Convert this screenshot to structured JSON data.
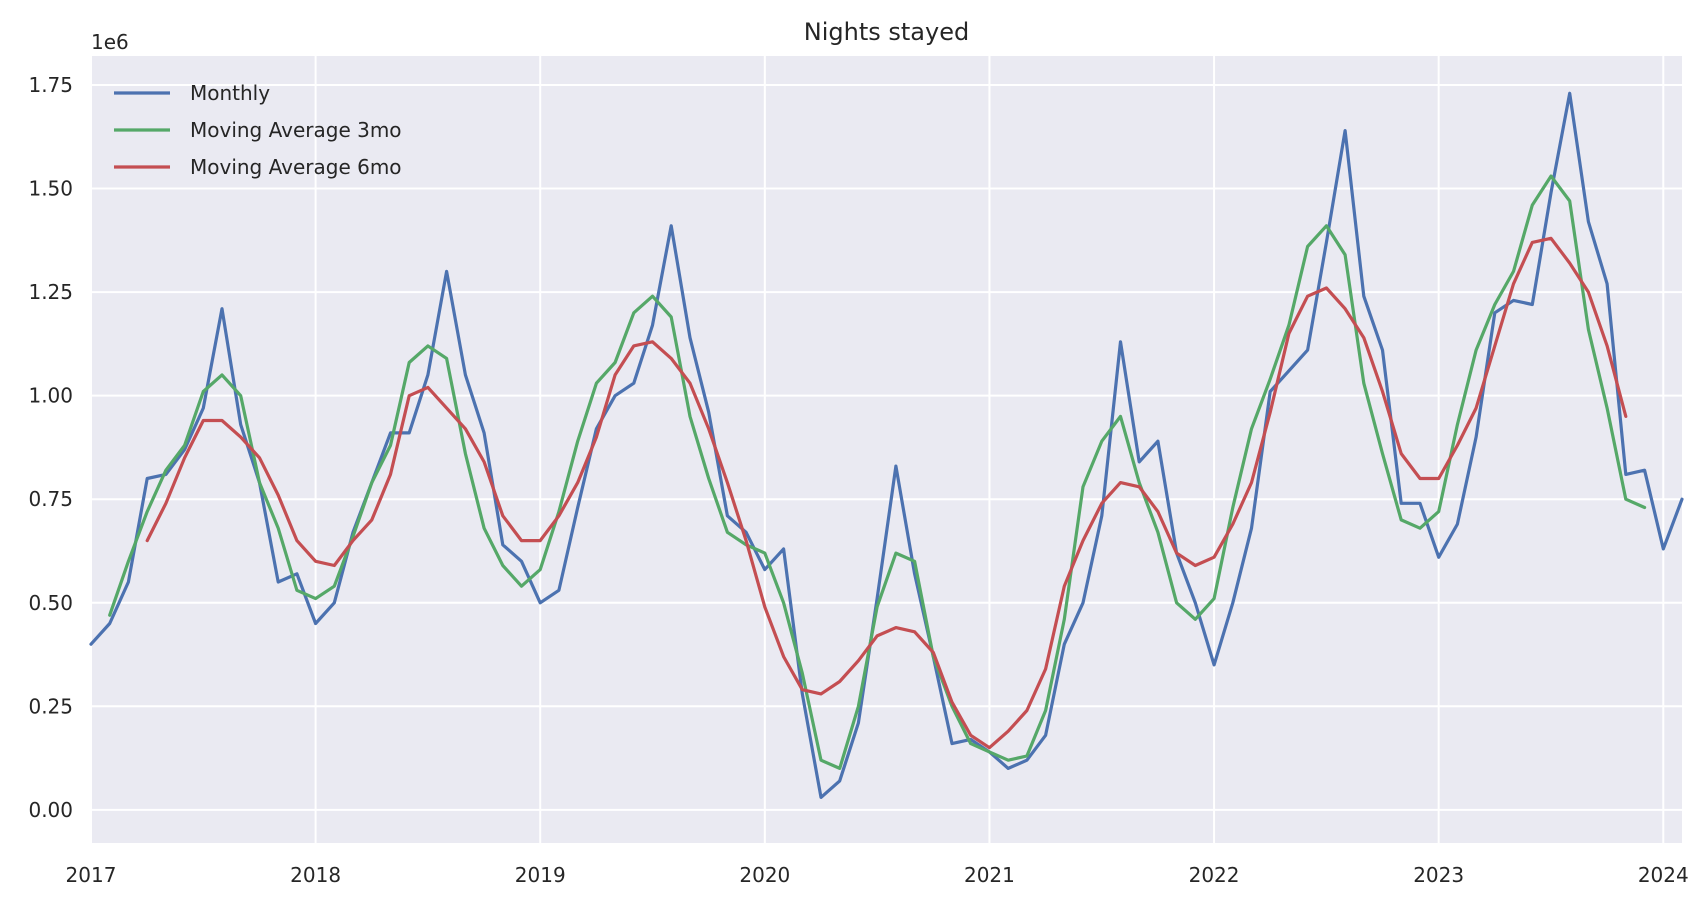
{
  "chart_data": {
    "type": "line",
    "title": "Nights stayed",
    "xlabel": "",
    "ylabel": "",
    "y_offset_label": "1e6",
    "xlim": [
      "2017-01",
      "2024-02"
    ],
    "ylim": [
      -0.08,
      1.82
    ],
    "x_ticks": [
      "2017",
      "2018",
      "2019",
      "2020",
      "2021",
      "2022",
      "2023",
      "2024"
    ],
    "y_ticks": [
      "0.00",
      "0.25",
      "0.50",
      "0.75",
      "1.00",
      "1.25",
      "1.50",
      "1.75"
    ],
    "grid": true,
    "legend_position": "top-left",
    "x": [
      "2017-01",
      "2017-02",
      "2017-03",
      "2017-04",
      "2017-05",
      "2017-06",
      "2017-07",
      "2017-08",
      "2017-09",
      "2017-10",
      "2017-11",
      "2017-12",
      "2018-01",
      "2018-02",
      "2018-03",
      "2018-04",
      "2018-05",
      "2018-06",
      "2018-07",
      "2018-08",
      "2018-09",
      "2018-10",
      "2018-11",
      "2018-12",
      "2019-01",
      "2019-02",
      "2019-03",
      "2019-04",
      "2019-05",
      "2019-06",
      "2019-07",
      "2019-08",
      "2019-09",
      "2019-10",
      "2019-11",
      "2019-12",
      "2020-01",
      "2020-02",
      "2020-03",
      "2020-04",
      "2020-05",
      "2020-06",
      "2020-07",
      "2020-08",
      "2020-09",
      "2020-10",
      "2020-11",
      "2020-12",
      "2021-01",
      "2021-02",
      "2021-03",
      "2021-04",
      "2021-05",
      "2021-06",
      "2021-07",
      "2021-08",
      "2021-09",
      "2021-10",
      "2021-11",
      "2021-12",
      "2022-01",
      "2022-02",
      "2022-03",
      "2022-04",
      "2022-05",
      "2022-06",
      "2022-07",
      "2022-08",
      "2022-09",
      "2022-10",
      "2022-11",
      "2022-12",
      "2023-01",
      "2023-02",
      "2023-03",
      "2023-04",
      "2023-05",
      "2023-06",
      "2023-07",
      "2023-08",
      "2023-09",
      "2023-10",
      "2023-11",
      "2023-12",
      "2024-01",
      "2024-02"
    ],
    "series": [
      {
        "name": "Monthly",
        "color": "#4c72b0",
        "values": [
          0.4,
          0.45,
          0.55,
          0.8,
          0.81,
          0.87,
          0.97,
          1.21,
          0.93,
          0.79,
          0.55,
          0.57,
          0.45,
          0.5,
          0.67,
          0.79,
          0.91,
          0.91,
          1.05,
          1.3,
          1.05,
          0.91,
          0.64,
          0.6,
          0.5,
          0.53,
          0.73,
          0.92,
          1.0,
          1.03,
          1.17,
          1.41,
          1.14,
          0.96,
          0.71,
          0.67,
          0.58,
          0.63,
          0.28,
          0.03,
          0.07,
          0.21,
          0.51,
          0.83,
          0.57,
          0.37,
          0.16,
          0.17,
          0.14,
          0.1,
          0.12,
          0.18,
          0.4,
          0.5,
          0.71,
          1.13,
          0.84,
          0.89,
          0.62,
          0.5,
          0.35,
          0.5,
          0.68,
          1.01,
          1.06,
          1.11,
          1.37,
          1.64,
          1.24,
          1.11,
          0.74,
          0.74,
          0.61,
          0.69,
          0.9,
          1.2,
          1.23,
          1.22,
          1.49,
          1.73,
          1.42,
          1.27,
          0.81,
          0.82,
          0.63,
          0.75
        ]
      },
      {
        "name": "Moving Average 3mo",
        "color": "#55a868",
        "values": [
          null,
          0.47,
          0.6,
          0.72,
          0.82,
          0.88,
          1.01,
          1.05,
          1.0,
          0.79,
          0.68,
          0.53,
          0.51,
          0.54,
          0.66,
          0.79,
          0.88,
          1.08,
          1.12,
          1.09,
          0.86,
          0.68,
          0.59,
          0.54,
          0.58,
          0.72,
          0.89,
          1.03,
          1.08,
          1.2,
          1.24,
          1.19,
          0.95,
          0.8,
          0.67,
          0.64,
          0.62,
          0.5,
          0.33,
          0.12,
          0.1,
          0.25,
          0.49,
          0.62,
          0.6,
          0.37,
          0.25,
          0.16,
          0.14,
          0.12,
          0.13,
          0.24,
          0.46,
          0.78,
          0.89,
          0.95,
          0.79,
          0.67,
          0.5,
          0.46,
          0.51,
          0.73,
          0.92,
          1.04,
          1.17,
          1.36,
          1.41,
          1.34,
          1.03,
          0.86,
          0.7,
          0.68,
          0.72,
          0.93,
          1.11,
          1.22,
          1.3,
          1.46,
          1.53,
          1.47,
          1.16,
          0.97,
          0.75,
          0.73,
          null,
          null
        ]
      },
      {
        "name": "Moving Average 6mo",
        "color": "#c44e52",
        "values": [
          null,
          null,
          null,
          0.65,
          0.74,
          0.85,
          0.94,
          0.94,
          0.9,
          0.85,
          0.76,
          0.65,
          0.6,
          0.59,
          0.65,
          0.7,
          0.81,
          1.0,
          1.02,
          0.97,
          0.92,
          0.84,
          0.71,
          0.65,
          0.65,
          0.71,
          0.79,
          0.9,
          1.05,
          1.12,
          1.13,
          1.09,
          1.03,
          0.92,
          0.79,
          0.65,
          0.49,
          0.37,
          0.29,
          0.28,
          0.31,
          0.36,
          0.42,
          0.44,
          0.43,
          0.38,
          0.26,
          0.18,
          0.15,
          0.19,
          0.24,
          0.34,
          0.54,
          0.65,
          0.74,
          0.79,
          0.78,
          0.72,
          0.62,
          0.59,
          0.61,
          0.69,
          0.79,
          0.96,
          1.15,
          1.24,
          1.26,
          1.21,
          1.14,
          1.01,
          0.86,
          0.8,
          0.8,
          0.88,
          0.97,
          1.12,
          1.27,
          1.37,
          1.38,
          1.32,
          1.25,
          1.12,
          0.95,
          null,
          null,
          null
        ]
      }
    ]
  }
}
